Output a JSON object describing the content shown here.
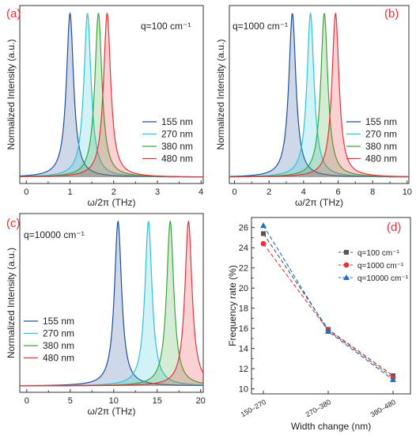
{
  "colors": {
    "s155": "#1f4e9c",
    "s270": "#2ec4d6",
    "s380": "#3aa63a",
    "s480": "#e8323a",
    "panel_label": "#e8323a",
    "rate_q100": "#555555",
    "rate_q1000": "#e8323a",
    "rate_q10000": "#1f6fc4"
  },
  "chart_data": [
    {
      "type": "line",
      "panel": "(a)",
      "annotation": "q=100 cm⁻¹",
      "xlabel": "ω/2π (THz)",
      "ylabel": "Normalized Intensity (a.u.)",
      "xlim": [
        -0.15,
        4.05
      ],
      "xticks": [
        "0",
        "1",
        "2",
        "3",
        "4"
      ],
      "legend_position": "right",
      "linewidth_thz": 0.1,
      "series": [
        {
          "name": "155 nm",
          "peak": 1.0
        },
        {
          "name": "270 nm",
          "peak": 1.4
        },
        {
          "name": "380 nm",
          "peak": 1.65
        },
        {
          "name": "480 nm",
          "peak": 1.85
        }
      ]
    },
    {
      "type": "line",
      "panel": "(b)",
      "annotation": "q=1000 cm⁻¹",
      "xlabel": "ω/2π (THz)",
      "ylabel": "Normalized Intensity (a.u.)",
      "xlim": [
        -0.3,
        10.1
      ],
      "xticks": [
        "0",
        "2",
        "4",
        "6",
        "8",
        "10"
      ],
      "legend_position": "right",
      "linewidth_thz": 0.25,
      "series": [
        {
          "name": "155 nm",
          "peak": 3.35
        },
        {
          "name": "270 nm",
          "peak": 4.4
        },
        {
          "name": "380 nm",
          "peak": 5.2
        },
        {
          "name": "480 nm",
          "peak": 5.85
        }
      ]
    },
    {
      "type": "line",
      "panel": "(c)",
      "annotation": "q=10000 cm⁻¹",
      "xlabel": "ω/2π (THz)",
      "ylabel": "Normalized Intensity (a.u.)",
      "xlim": [
        -0.8,
        20.3
      ],
      "xticks": [
        "0",
        "5",
        "10",
        "15",
        "20"
      ],
      "legend_position": "left",
      "linewidth_thz": 0.5,
      "series": [
        {
          "name": "155 nm",
          "peak": 10.5
        },
        {
          "name": "270 nm",
          "peak": 14.0
        },
        {
          "name": "380 nm",
          "peak": 16.5
        },
        {
          "name": "480 nm",
          "peak": 18.6
        }
      ]
    },
    {
      "type": "line",
      "panel": "(d)",
      "xlabel": "Width change (nm)",
      "ylabel": "Frequency rate (%)",
      "categories": [
        "150–270",
        "270–380",
        "380–480"
      ],
      "ylim": [
        9.5,
        27
      ],
      "yticks": [
        10,
        12,
        14,
        16,
        18,
        20,
        22,
        24,
        26
      ],
      "legend_position": "top-right",
      "series": [
        {
          "name": "q=100 cm⁻¹",
          "values": [
            25.4,
            15.9,
            11.3
          ]
        },
        {
          "name": "q=1000 cm⁻¹",
          "values": [
            24.4,
            15.8,
            11.1
          ]
        },
        {
          "name": "q=10000 cm⁻¹",
          "values": [
            26.2,
            15.7,
            10.9
          ]
        }
      ]
    }
  ]
}
